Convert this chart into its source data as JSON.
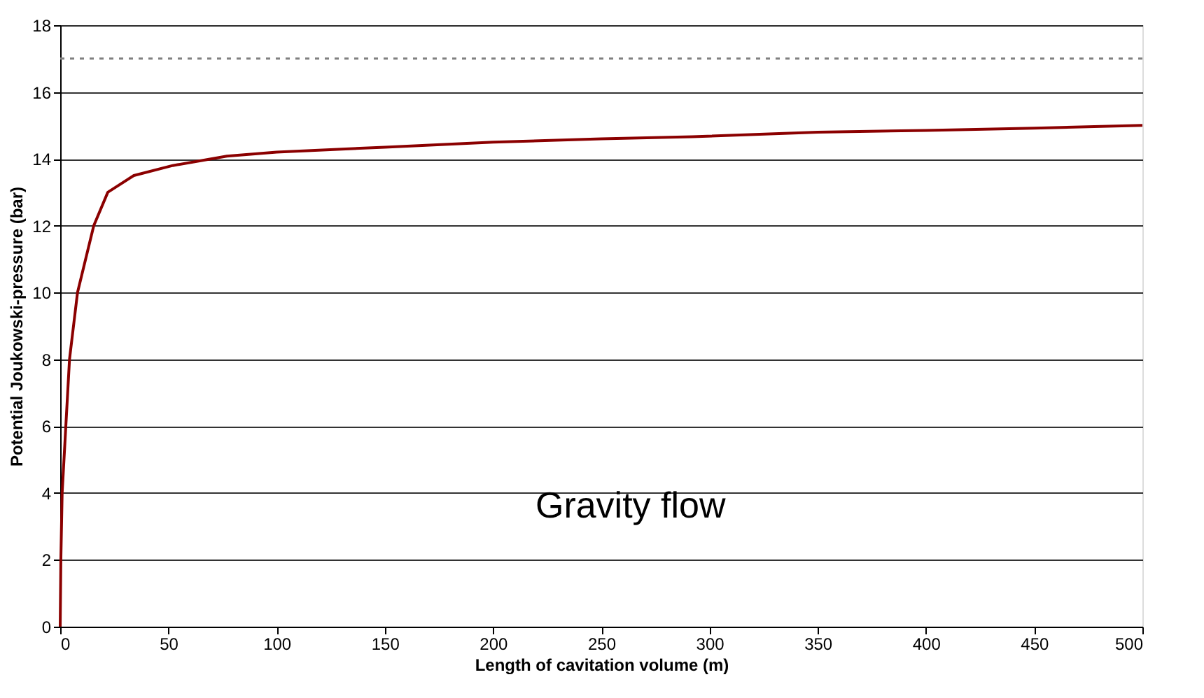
{
  "chart_data": {
    "type": "line",
    "xlabel": "Length of cavitation volume (m)",
    "ylabel": "Potential Joukowski-pressure (bar)",
    "x": [
      0,
      0.3,
      0.9,
      2.6,
      4.3,
      8,
      15.5,
      22,
      34,
      52,
      77,
      100,
      150,
      200,
      250,
      292,
      350,
      400,
      450,
      500
    ],
    "series": [
      {
        "color": "#8b0000",
        "values": [
          0,
          2,
          4,
          6,
          8,
          10,
          12,
          13,
          13.5,
          13.8,
          14.08,
          14.2,
          14.35,
          14.5,
          14.6,
          14.66,
          14.8,
          14.85,
          14.92,
          15.0
        ]
      }
    ],
    "xlim": [
      0,
      500
    ],
    "xticks": [
      0,
      50,
      100,
      150,
      200,
      250,
      300,
      350,
      400,
      450,
      500
    ],
    "ylim": [
      0,
      18
    ],
    "yticks": [
      0,
      2,
      4,
      6,
      8,
      10,
      12,
      14,
      16,
      18
    ],
    "grid": "y",
    "marker": "none",
    "line_style": "solid",
    "ref_lines": [
      {
        "axis": "y",
        "value": 17,
        "color": "#808080",
        "line_style": "dotted"
      }
    ],
    "annotations": [
      "Gravity flow"
    ]
  }
}
